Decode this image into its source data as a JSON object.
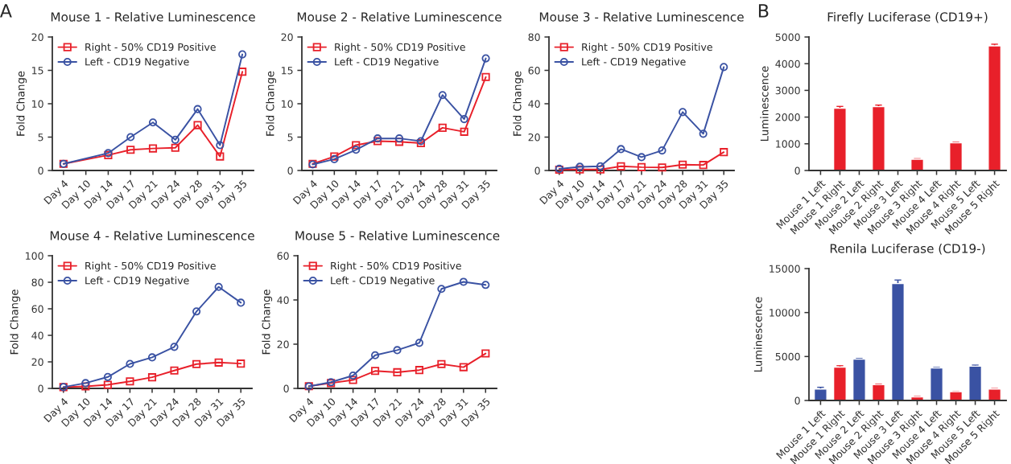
{
  "chart_data": [
    {
      "type": "line",
      "title": "Mouse 1 - Relative Luminescence",
      "ylabel": "Fold Change",
      "annotations": [
        "A"
      ],
      "categories": [
        "Day 4",
        "Day 10",
        "Day 14",
        "Day 17",
        "Day 21",
        "Day 24",
        "Day 28",
        "Day 31",
        "Day 35"
      ],
      "ylim": [
        0,
        20
      ],
      "yticks": [
        0,
        5,
        10,
        15,
        20
      ],
      "grid": false,
      "legend": "top left",
      "series": [
        {
          "name": "Right - 50% CD19 Positive",
          "color": "#e8202a",
          "marker": "square",
          "values": [
            1.0,
            null,
            2.3,
            3.1,
            3.3,
            3.4,
            6.8,
            2.1,
            14.8
          ]
        },
        {
          "name": "Left - CD19 Negative",
          "color": "#3a52a3",
          "marker": "circle",
          "values": [
            1.0,
            null,
            2.6,
            5.0,
            7.2,
            4.6,
            9.2,
            3.8,
            17.4
          ]
        }
      ]
    },
    {
      "type": "line",
      "title": "Mouse 2 - Relative Luminescence",
      "ylabel": "Fold Change",
      "categories": [
        "Day 4",
        "Day 10",
        "Day 14",
        "Day 17",
        "Day 21",
        "Day 24",
        "Day 28",
        "Day 31",
        "Day 35"
      ],
      "ylim": [
        0,
        20
      ],
      "yticks": [
        0,
        5,
        10,
        15,
        20
      ],
      "grid": false,
      "legend": "top left",
      "series": [
        {
          "name": "Right - 50% CD19 Positive",
          "color": "#e8202a",
          "marker": "square",
          "values": [
            1.0,
            2.1,
            3.8,
            4.4,
            4.3,
            4.1,
            6.4,
            5.8,
            14.0
          ]
        },
        {
          "name": "Left - CD19 Negative",
          "color": "#3a52a3",
          "marker": "circle",
          "values": [
            0.9,
            1.7,
            3.1,
            4.8,
            4.8,
            4.4,
            11.3,
            7.7,
            16.8
          ]
        }
      ]
    },
    {
      "type": "line",
      "title": "Mouse 3 - Relative Luminescence",
      "ylabel": "Fold Change",
      "categories": [
        "Day 4",
        "Day 10",
        "Day 14",
        "Day 17",
        "Day 21",
        "Day 24",
        "Day 28",
        "Day 31",
        "Day 35"
      ],
      "ylim": [
        0,
        80
      ],
      "yticks": [
        0,
        20,
        40,
        60,
        80
      ],
      "grid": false,
      "legend": "top left",
      "series": [
        {
          "name": "Right - 50% CD19 Positive",
          "color": "#e8202a",
          "marker": "square",
          "values": [
            0.5,
            0.6,
            0.6,
            2.5,
            2.0,
            1.8,
            3.5,
            3.3,
            11
          ]
        },
        {
          "name": "Left - CD19 Negative",
          "color": "#3a52a3",
          "marker": "circle",
          "values": [
            1,
            2.2,
            2.5,
            12.8,
            8,
            12,
            35,
            22,
            62
          ]
        }
      ]
    },
    {
      "type": "bar",
      "title": "Firefly Luciferase (CD19+)",
      "ylabel": "Luminescence",
      "annotations": [
        "B"
      ],
      "categories": [
        "Mouse 1 Left",
        "Mouse 1 Right",
        "Mouse 2 Left",
        "Mouse 2 Right",
        "Mouse 3 Left",
        "Mouse 3 Right",
        "Mouse 4 Left",
        "Mouse 4 Right",
        "Mouse 5 Left",
        "Mouse 5 Right"
      ],
      "ylim": [
        0,
        5000
      ],
      "yticks": [
        0,
        1000,
        2000,
        3000,
        4000,
        5000
      ],
      "grid": false,
      "values": [
        null,
        2330,
        null,
        2390,
        null,
        420,
        null,
        1040,
        null,
        4670
      ],
      "errors": [
        null,
        70,
        null,
        60,
        null,
        20,
        null,
        20,
        null,
        60
      ],
      "colors": [
        "#e8202a",
        "#e8202a",
        "#e8202a",
        "#e8202a",
        "#e8202a",
        "#e8202a",
        "#e8202a",
        "#e8202a",
        "#e8202a",
        "#e8202a"
      ]
    },
    {
      "type": "line",
      "title": "Mouse 4 - Relative Luminescence",
      "ylabel": "Fold Change",
      "categories": [
        "Day 4",
        "Day 10",
        "Day 14",
        "Day 17",
        "Day 21",
        "Day 24",
        "Day 28",
        "Day 31",
        "Day 35"
      ],
      "ylim": [
        0,
        100
      ],
      "yticks": [
        0,
        20,
        40,
        60,
        80,
        100
      ],
      "grid": false,
      "legend": "top left",
      "series": [
        {
          "name": "Right - 50% CD19 Positive",
          "color": "#e8202a",
          "marker": "square",
          "values": [
            1,
            1.5,
            2.7,
            5.3,
            8.4,
            13.5,
            18.3,
            19.5,
            18.7
          ]
        },
        {
          "name": "Left - CD19 Negative",
          "color": "#3a52a3",
          "marker": "circle",
          "values": [
            1,
            4,
            8.6,
            18.5,
            23.4,
            31.3,
            58,
            76.5,
            64.6
          ]
        }
      ]
    },
    {
      "type": "line",
      "title": "Mouse 5 - Relative Luminescence",
      "ylabel": "Fold Change",
      "categories": [
        "Day 4",
        "Day 10",
        "Day 14",
        "Day 17",
        "Day 21",
        "Day 24",
        "Day 28",
        "Day 31",
        "Day 35"
      ],
      "ylim": [
        0,
        60
      ],
      "yticks": [
        0,
        20,
        40,
        60
      ],
      "grid": false,
      "legend": "top left",
      "series": [
        {
          "name": "Right - 50% CD19 Positive",
          "color": "#e8202a",
          "marker": "square",
          "values": [
            1,
            2.4,
            3.8,
            7.9,
            7.3,
            8.3,
            11,
            9.6,
            15.8
          ]
        },
        {
          "name": "Left - CD19 Negative",
          "color": "#3a52a3",
          "marker": "circle",
          "values": [
            0.9,
            2.8,
            5.8,
            15,
            17.3,
            20.6,
            45,
            48.2,
            46.8
          ]
        }
      ]
    },
    {
      "type": "bar",
      "title": "Renila Luciferase (CD19-)",
      "ylabel": "Luminescence",
      "categories": [
        "Mouse 1 Left",
        "Mouse 1 Right",
        "Mouse 2 Left",
        "Mouse 2 Right",
        "Mouse 3 Left",
        "Mouse 3 Right",
        "Mouse 4 Left",
        "Mouse 4 Right",
        "Mouse 5 Left",
        "Mouse 5 Right"
      ],
      "ylim": [
        0,
        15000
      ],
      "yticks": [
        0,
        5000,
        10000,
        15000
      ],
      "grid": false,
      "values": [
        1300,
        3800,
        4700,
        1800,
        13300,
        400,
        3700,
        1000,
        3900,
        1300
      ],
      "errors": [
        200,
        150,
        70,
        60,
        400,
        40,
        70,
        40,
        120,
        50
      ],
      "colors": [
        "#3a52a3",
        "#e8202a",
        "#3a52a3",
        "#e8202a",
        "#3a52a3",
        "#e8202a",
        "#3a52a3",
        "#e8202a",
        "#3a52a3",
        "#e8202a"
      ]
    }
  ]
}
